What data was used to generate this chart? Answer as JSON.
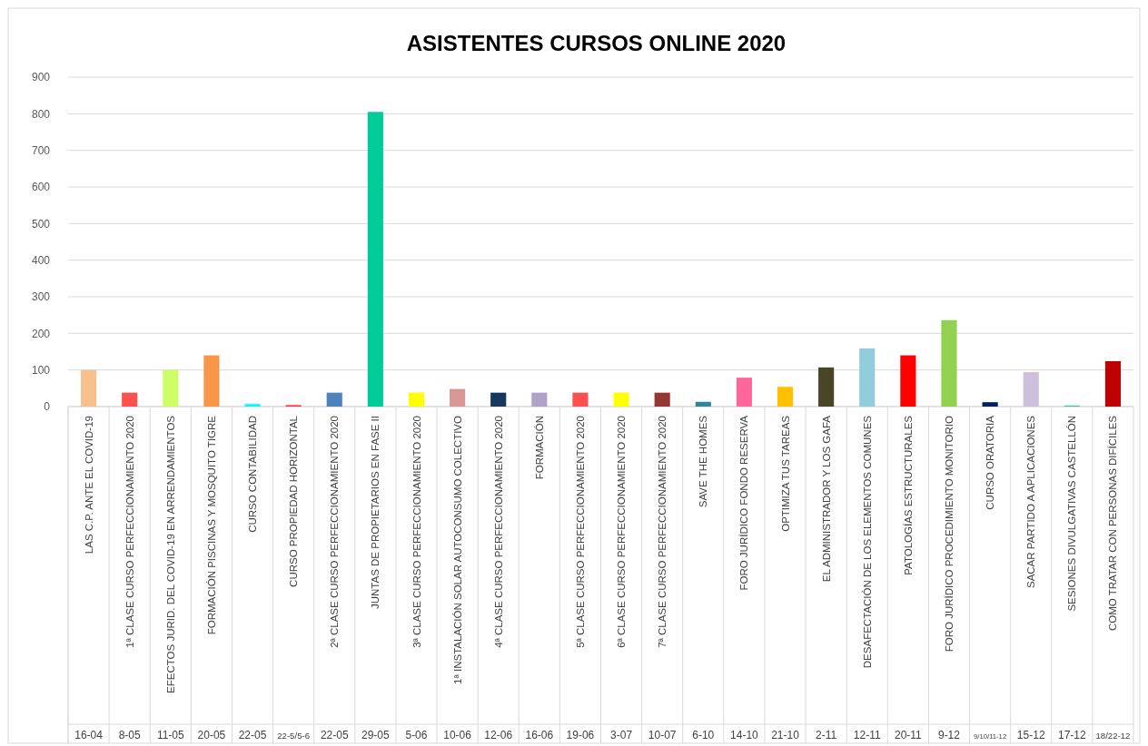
{
  "chart_data": {
    "type": "bar",
    "title": "ASISTENTES CURSOS ONLINE 2020",
    "categories": [
      "LAS C.P. ANTE EL COVID-19",
      "1ª CLASE CURSO PERFECCIONAMIENTO 2020",
      "EFECTOS JURID. DEL COVID-19 EN ARRENDAMIENTOS",
      "FORMACIÓN PISCINAS Y MOSQUITO TIGRE",
      "CURSO CONTABILIDAD",
      "CURSO PROPIEDAD HORIZONTAL",
      "2ª CLASE CURSO PERFECCIONAMIENTO 2020",
      "JUNTAS DE PROPIETARIOS EN FASE II",
      "3ª CLASE CURSO PERFECCIONAMIENTO 2020",
      "1ª INSTALACIÓN SOLAR AUTOCONSUMO COLECTIVO",
      "4ª CLASE CURSO PERFECCIONAMIENTO 2020",
      "FORMACIÓN",
      "5ª CLASE CURSO PERFECCIONAMIENTO 2020",
      "6ª CLASE CURSO PERFECCIONAMIENTO 2020",
      "7ª CLASE CURSO PERFECCIONAMIENTO 2020",
      "SAVE THE HOMES",
      "FORO JURÍDICO FONDO RESERVA",
      "OPTIMIZA TUS TAREAS",
      "EL ADMINISTRADOR Y LOS GAFA",
      "DESAFECTACIÓN DE LOS ELEMENTOS COMUNES",
      "PATOLOGÍAS ESTRUCTURALES",
      "FORO JURÍDICO PROCEDIMIENTO MONITORIO",
      "CURSO ORATORIA",
      "SACAR PARTIDO A APLICACIONES",
      "SESIONES DIVULGATIVAS CASTELLÓN",
      "COMO TRATAR CON PERSONAS DIFÍCILES"
    ],
    "values": [
      100,
      38,
      100,
      140,
      7,
      4,
      38,
      805,
      38,
      48,
      38,
      38,
      38,
      38,
      38,
      13,
      79,
      54,
      107,
      159,
      140,
      236,
      12,
      94,
      3,
      124
    ],
    "colors": [
      "#f9c08f",
      "#ff5050",
      "#ccff66",
      "#f79646",
      "#00ffff",
      "#ff3333",
      "#4f81bd",
      "#00cc99",
      "#ffff00",
      "#da9694",
      "#17375e",
      "#b1a0c7",
      "#ff5050",
      "#ffff00",
      "#953735",
      "#31869b",
      "#ff6699",
      "#ffc000",
      "#494529",
      "#92cddc",
      "#ff0000",
      "#92d050",
      "#002060",
      "#ccc0da",
      "#33cc99",
      "#c00000"
    ],
    "ylim": [
      0,
      900
    ],
    "yticks": [
      0,
      100,
      200,
      300,
      400,
      500,
      600,
      700,
      800,
      900
    ],
    "grid": "y",
    "annotations": [
      "16-04",
      "8-05",
      "11-05",
      "20-05",
      "22-05",
      "22-5/5-6",
      "22-05",
      "29-05",
      "5-06",
      "10-06",
      "12-06",
      "16-06",
      "19-06",
      "3-07",
      "10-07",
      "6-10",
      "14-10",
      "21-10",
      "2-11",
      "12-11",
      "20-11",
      "9-12",
      "9/10/11-12",
      "15-12",
      "17-12",
      "18/22-12"
    ]
  }
}
